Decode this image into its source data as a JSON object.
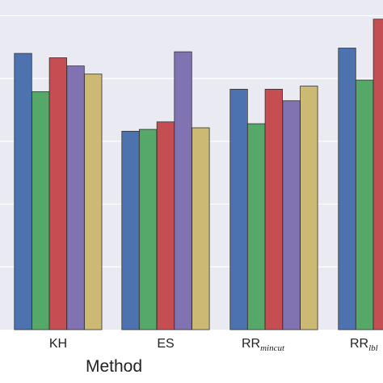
{
  "chart_data": {
    "type": "bar",
    "xlabel": "Method",
    "ylabel": "",
    "title": "",
    "grid": true,
    "ylim": [
      0,
      1.05
    ],
    "y_gridlines": [
      0.2,
      0.4,
      0.6,
      0.8,
      1.0
    ],
    "categories": [
      {
        "main": "KH",
        "sub": ""
      },
      {
        "main": "ES",
        "sub": ""
      },
      {
        "main": "RR",
        "sub": "mincut"
      },
      {
        "main": "RR",
        "sub": "lbl"
      }
    ],
    "series": [
      {
        "color": "#4c72b0",
        "values": [
          0.88,
          0.632,
          0.766,
          0.897
        ]
      },
      {
        "color": "#55a868",
        "values": [
          0.758,
          0.638,
          0.656,
          0.795
        ]
      },
      {
        "color": "#c44e52",
        "values": [
          0.866,
          0.662,
          0.766,
          0.989
        ]
      },
      {
        "color": "#8172b2",
        "values": [
          0.84,
          0.885,
          0.729,
          null
        ]
      },
      {
        "color": "#ccb974",
        "values": [
          0.814,
          0.643,
          0.776,
          null
        ]
      }
    ]
  }
}
